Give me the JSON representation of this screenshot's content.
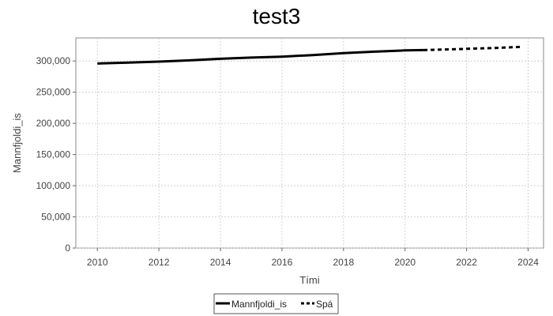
{
  "chart_data": {
    "type": "line",
    "title": "test3",
    "xlabel": "Tími",
    "ylabel": "Mannfjoldi_is",
    "xlim": [
      2009.3,
      2024.5
    ],
    "ylim": [
      0,
      337000
    ],
    "x_ticks": [
      2010,
      2012,
      2014,
      2016,
      2018,
      2020,
      2022,
      2024
    ],
    "y_ticks": [
      0,
      50000,
      100000,
      150000,
      200000,
      250000,
      300000
    ],
    "y_tick_labels": [
      "0",
      "50,000",
      "100,000",
      "150,000",
      "200,000",
      "250,000",
      "300,000"
    ],
    "grid": true,
    "legend_position": "bottom",
    "series": [
      {
        "name": "Mannfjoldi_is",
        "style": "solid",
        "color": "#000000",
        "x": [
          2010,
          2011,
          2012,
          2013,
          2014,
          2015,
          2016,
          2017,
          2018,
          2019,
          2020,
          2020.6
        ],
        "y": [
          296000,
          297500,
          299000,
          301000,
          303500,
          305500,
          307000,
          309500,
          312500,
          315000,
          317000,
          317500
        ]
      },
      {
        "name": "Spá",
        "style": "dashed",
        "color": "#000000",
        "x": [
          2020.6,
          2021,
          2022,
          2023,
          2023.75
        ],
        "y": [
          317500,
          318000,
          319500,
          321000,
          322500
        ]
      }
    ]
  }
}
